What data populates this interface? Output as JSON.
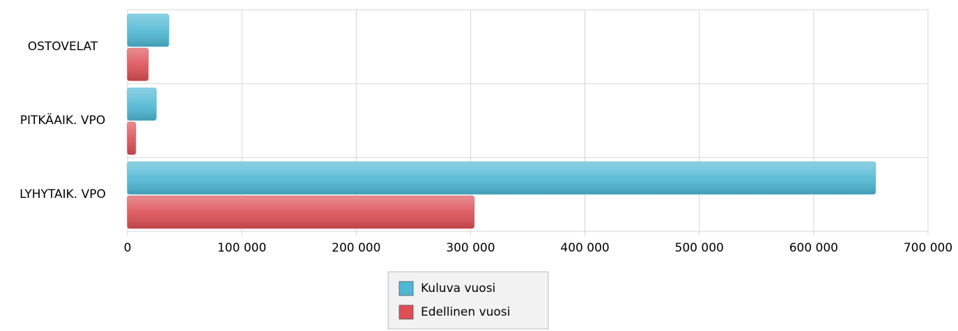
{
  "chart_data": {
    "type": "hbar",
    "categories": [
      "OSTOVELAT",
      "PITKÄAIK. VPO",
      "LYHYTAIK. VPO"
    ],
    "series": [
      {
        "name": "Kuluva vuosi",
        "color": "#4fb8d4",
        "values": [
          36000,
          25000,
          654000
        ]
      },
      {
        "name": "Edellinen vuosi",
        "color": "#dc4f55",
        "values": [
          18000,
          7000,
          303000
        ]
      }
    ],
    "xlim": [
      0,
      700000
    ],
    "xticks": [
      0,
      {
        "value": 100000,
        "label": "100 000"
      },
      {
        "value": 200000,
        "label": "200 000"
      },
      {
        "value": 300000,
        "label": "300 000"
      },
      {
        "value": 400000,
        "label": "400 000"
      },
      {
        "value": 500000,
        "label": "500 000"
      },
      {
        "value": 600000,
        "label": "600 000"
      },
      {
        "value": 700000,
        "label": "700 000"
      }
    ],
    "grid": true,
    "legend": "bottom"
  }
}
